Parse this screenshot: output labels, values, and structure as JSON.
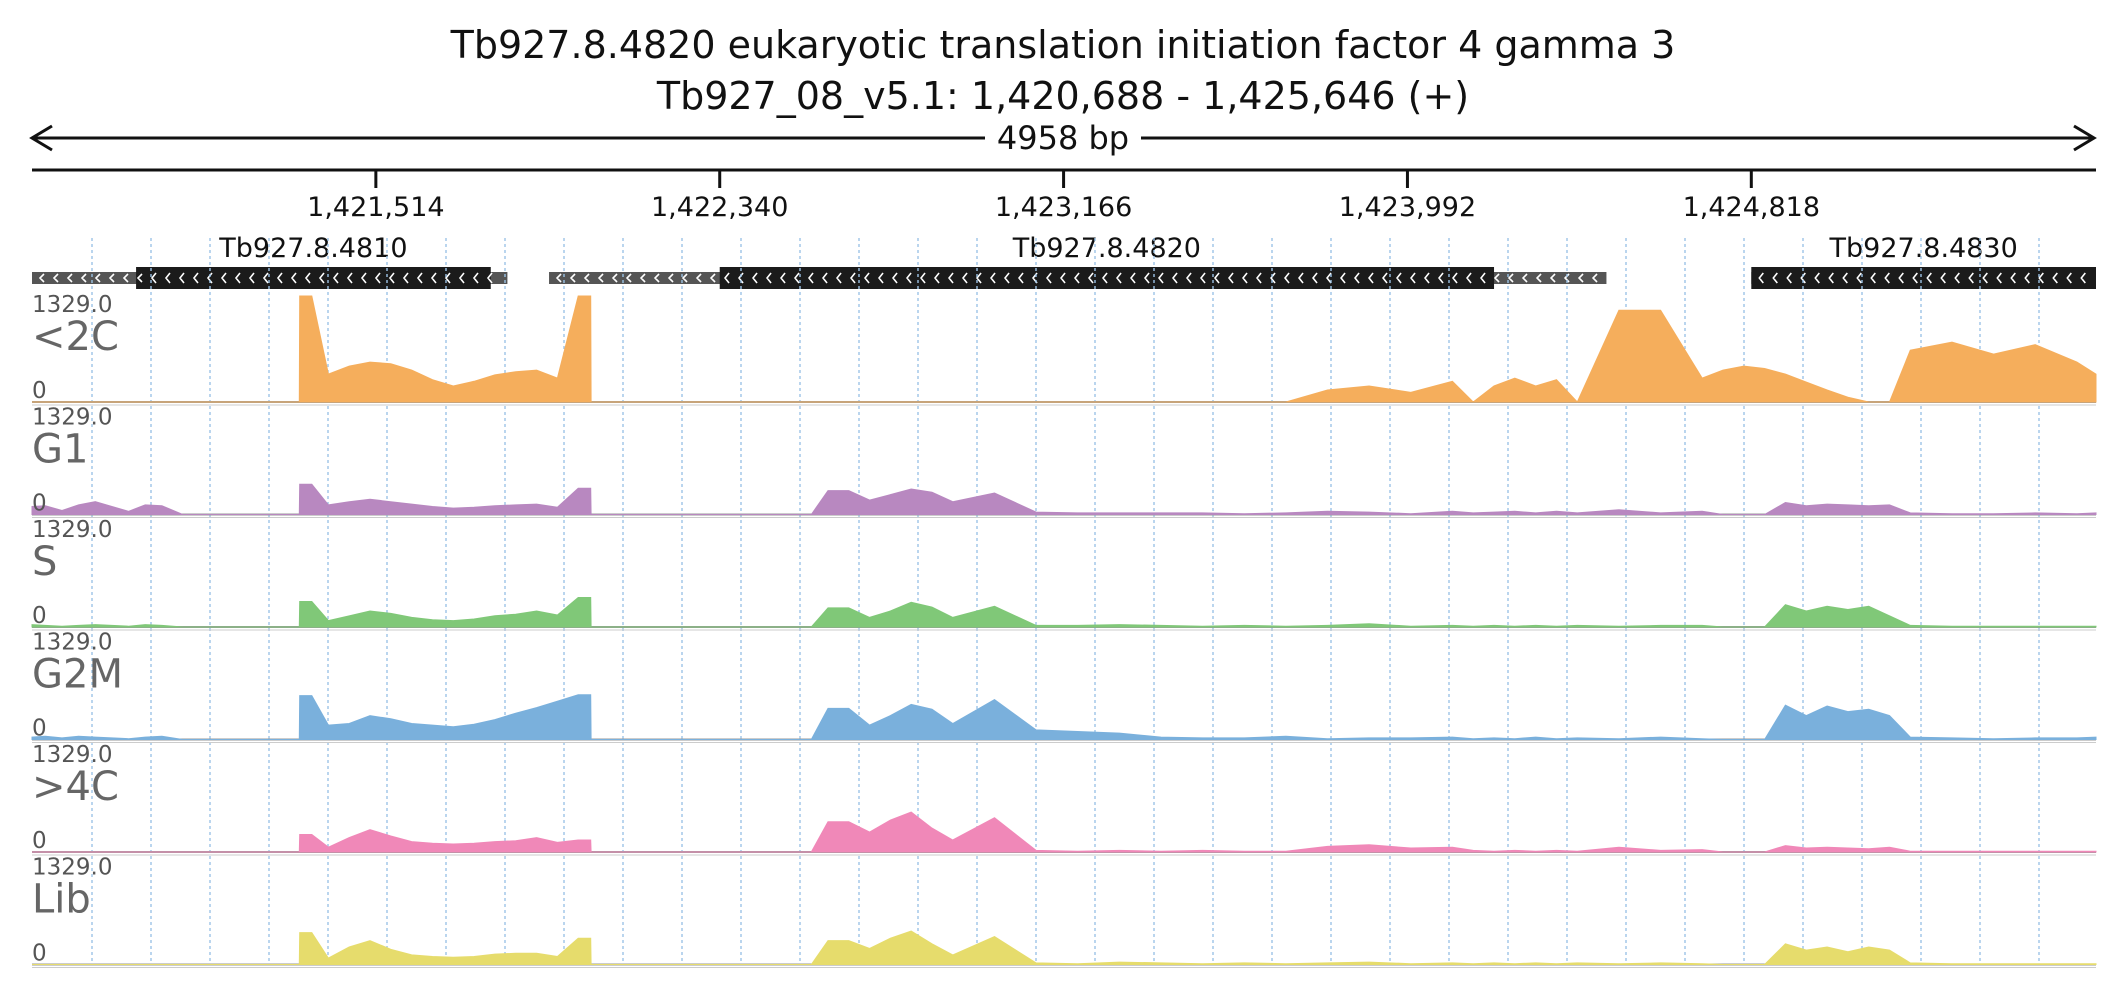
{
  "title_line1": "Tb927.8.4820  eukaryotic translation initiation factor 4 gamma 3",
  "title_line2": "Tb927_08_v5.1: 1,420,688 - 1,425,646 (+)",
  "span_label": "4958 bp",
  "chart_data": {
    "type": "area",
    "region": {
      "start": 1420688,
      "end": 1425646
    },
    "ticks": [
      1421514,
      1422340,
      1423166,
      1423992,
      1424818
    ],
    "tick_labels": [
      "1,421,514",
      "1,422,340",
      "1,423,166",
      "1,423,992",
      "1,424,818"
    ],
    "genes": [
      {
        "name": "Tb927.8.4810",
        "strand": "-",
        "utr_start": 1420688,
        "cds_start": 1420938,
        "cds_end": 1421790,
        "utr_end": 1421830
      },
      {
        "name": "Tb927.8.4820",
        "strand": "-",
        "utr_start": 1421930,
        "cds_start": 1422340,
        "cds_end": 1424200,
        "utr_end": 1424470
      },
      {
        "name": "Tb927.8.4830",
        "strand": "-",
        "utr_start": 1424818,
        "cds_start": 1424818,
        "cds_end": 1425646,
        "utr_end": 1425646
      }
    ],
    "ymax_label": "1329.0",
    "ymin_label": "0",
    "ylim": [
      0,
      1329
    ],
    "grid": true,
    "coverage_x": [
      1420688,
      1420720,
      1420760,
      1420800,
      1420840,
      1420880,
      1420920,
      1420960,
      1421000,
      1421050,
      1421100,
      1421150,
      1421200,
      1421240,
      1421280,
      1421300,
      1421330,
      1421331,
      1421360,
      1421400,
      1421450,
      1421500,
      1421550,
      1421600,
      1421650,
      1421700,
      1421750,
      1421800,
      1421850,
      1421900,
      1421950,
      1422000,
      1422030,
      1422031,
      1422070,
      1422071,
      1422100,
      1422150,
      1422200,
      1422250,
      1422300,
      1422330,
      1422350,
      1422380,
      1422400,
      1422450,
      1422480,
      1422500,
      1422530,
      1422560,
      1422600,
      1422650,
      1422700,
      1422750,
      1422800,
      1422850,
      1422900,
      1423000,
      1423100,
      1423200,
      1423300,
      1423400,
      1423500,
      1423600,
      1423700,
      1423800,
      1423900,
      1424000,
      1424100,
      1424150,
      1424200,
      1424250,
      1424300,
      1424350,
      1424400,
      1424500,
      1424600,
      1424700,
      1424750,
      1424800,
      1424850,
      1424900,
      1424950,
      1425000,
      1425050,
      1425100,
      1425150,
      1425200,
      1425300,
      1425400,
      1425500,
      1425600,
      1425646
    ],
    "series": [
      {
        "name": "<2C",
        "color": "#f5ae5c",
        "values": [
          0,
          0,
          0,
          0,
          0,
          0,
          0,
          0,
          0,
          0,
          0,
          0,
          0,
          0,
          0,
          0,
          0,
          1329,
          1329,
          350,
          450,
          500,
          480,
          400,
          280,
          200,
          260,
          340,
          380,
          400,
          300,
          1329,
          1329,
          0,
          0,
          0,
          0,
          0,
          0,
          0,
          0,
          0,
          0,
          0,
          0,
          0,
          0,
          0,
          0,
          0,
          0,
          0,
          0,
          0,
          0,
          0,
          0,
          0,
          0,
          0,
          0,
          0,
          0,
          0,
          0,
          150,
          200,
          120,
          260,
          0,
          200,
          300,
          200,
          280,
          0,
          1150,
          1150,
          300,
          400,
          450,
          420,
          350,
          250,
          150,
          60,
          0,
          0,
          650,
          750,
          600,
          720,
          500,
          350
        ]
      },
      {
        "name": "G1",
        "color": "#b888c0",
        "values": [
          100,
          110,
          50,
          120,
          160,
          100,
          40,
          120,
          110,
          0,
          0,
          0,
          0,
          0,
          0,
          0,
          0,
          380,
          380,
          120,
          160,
          190,
          160,
          130,
          100,
          80,
          90,
          110,
          120,
          130,
          90,
          330,
          330,
          0,
          0,
          0,
          0,
          0,
          0,
          0,
          0,
          0,
          0,
          0,
          0,
          0,
          0,
          0,
          0,
          0,
          300,
          300,
          180,
          250,
          320,
          280,
          160,
          270,
          30,
          20,
          20,
          20,
          20,
          10,
          20,
          40,
          30,
          10,
          40,
          20,
          30,
          40,
          20,
          40,
          20,
          60,
          20,
          40,
          0,
          0,
          0,
          150,
          110,
          130,
          120,
          110,
          120,
          20,
          10,
          10,
          20,
          10,
          20
        ]
      },
      {
        "name": "S",
        "color": "#80c878",
        "values": [
          30,
          20,
          10,
          20,
          30,
          20,
          10,
          30,
          20,
          0,
          0,
          0,
          0,
          0,
          0,
          0,
          0,
          320,
          320,
          80,
          140,
          200,
          170,
          120,
          90,
          80,
          100,
          140,
          160,
          200,
          150,
          370,
          370,
          0,
          0,
          0,
          0,
          0,
          0,
          0,
          0,
          0,
          0,
          0,
          0,
          0,
          0,
          0,
          0,
          0,
          240,
          240,
          120,
          200,
          310,
          250,
          120,
          260,
          20,
          20,
          30,
          20,
          10,
          20,
          10,
          20,
          40,
          10,
          20,
          10,
          20,
          10,
          20,
          10,
          20,
          10,
          20,
          20,
          0,
          0,
          0,
          280,
          200,
          260,
          220,
          260,
          140,
          20,
          10,
          10,
          10,
          10,
          10
        ]
      },
      {
        "name": "G2M",
        "color": "#7ab0dc",
        "values": [
          30,
          40,
          20,
          40,
          30,
          20,
          10,
          30,
          40,
          0,
          0,
          0,
          0,
          0,
          0,
          0,
          0,
          550,
          550,
          180,
          200,
          300,
          260,
          200,
          180,
          160,
          190,
          250,
          330,
          400,
          480,
          560,
          560,
          0,
          0,
          0,
          0,
          0,
          0,
          0,
          0,
          0,
          0,
          0,
          0,
          0,
          0,
          0,
          0,
          0,
          390,
          390,
          180,
          300,
          440,
          380,
          200,
          500,
          120,
          100,
          80,
          30,
          20,
          20,
          40,
          10,
          20,
          20,
          30,
          10,
          20,
          10,
          30,
          10,
          20,
          10,
          30,
          10,
          0,
          0,
          0,
          430,
          300,
          420,
          350,
          380,
          300,
          30,
          20,
          10,
          20,
          20,
          30
        ]
      },
      {
        "name": ">4C",
        "color": "#f088b8",
        "values": [
          0,
          0,
          0,
          0,
          0,
          0,
          0,
          0,
          0,
          0,
          0,
          0,
          0,
          0,
          0,
          0,
          0,
          220,
          220,
          60,
          180,
          280,
          200,
          130,
          110,
          100,
          110,
          130,
          140,
          180,
          120,
          150,
          150,
          0,
          0,
          0,
          0,
          0,
          0,
          0,
          0,
          0,
          0,
          0,
          0,
          0,
          0,
          0,
          0,
          0,
          380,
          380,
          250,
          400,
          500,
          300,
          150,
          430,
          20,
          10,
          20,
          10,
          20,
          10,
          10,
          70,
          90,
          50,
          60,
          20,
          10,
          20,
          10,
          20,
          10,
          60,
          20,
          30,
          0,
          0,
          0,
          80,
          50,
          60,
          50,
          40,
          60,
          10,
          10,
          10,
          10,
          10,
          10
        ]
      },
      {
        "name": "Lib",
        "color": "#e6dc6c",
        "values": [
          0,
          0,
          0,
          0,
          0,
          0,
          0,
          0,
          0,
          0,
          0,
          0,
          0,
          0,
          0,
          0,
          0,
          400,
          400,
          80,
          220,
          300,
          190,
          120,
          100,
          90,
          100,
          130,
          140,
          140,
          100,
          330,
          330,
          0,
          0,
          0,
          0,
          0,
          0,
          0,
          0,
          0,
          0,
          0,
          0,
          0,
          0,
          0,
          0,
          0,
          300,
          300,
          200,
          330,
          420,
          260,
          120,
          350,
          20,
          10,
          30,
          20,
          10,
          20,
          10,
          20,
          30,
          10,
          20,
          10,
          20,
          10,
          20,
          10,
          20,
          10,
          20,
          10,
          0,
          0,
          0,
          260,
          180,
          220,
          160,
          220,
          180,
          20,
          10,
          10,
          10,
          10,
          10
        ]
      }
    ]
  }
}
